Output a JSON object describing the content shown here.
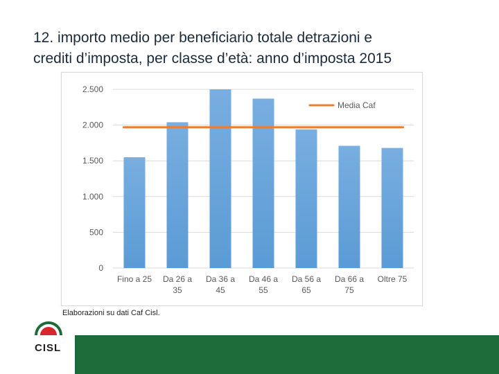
{
  "slide": {
    "title_line1": "12. importo medio per beneficiario totale detrazioni e",
    "title_line2": "crediti d’imposta, per classe d’età: anno d’imposta 2015",
    "source_note": "Elaborazioni su dati Caf Cisl.",
    "logo_text": "CISL"
  },
  "colors": {
    "bar": "#5b9bd5",
    "bar_light": "#78aee0",
    "avg_line": "#ed7d31",
    "footer": "#1e6b3a",
    "logo_red": "#d7262c",
    "logo_green": "#1e6b3a"
  },
  "chart_data": {
    "type": "bar",
    "title": "",
    "categories": [
      [
        "Fino a 25",
        ""
      ],
      [
        "Da 26 a",
        "35"
      ],
      [
        "Da 36 a",
        "45"
      ],
      [
        "Da 46 a",
        "55"
      ],
      [
        "Da 56 a",
        "65"
      ],
      [
        "Da 66 a",
        "75"
      ],
      [
        "Oltre 75",
        ""
      ]
    ],
    "values": [
      1550,
      2040,
      2500,
      2370,
      1940,
      1710,
      1680
    ],
    "average": {
      "name": "Media Caf",
      "value": 1970
    },
    "y_ticks": [
      {
        "value": 0,
        "label": "0"
      },
      {
        "value": 500,
        "label": "500"
      },
      {
        "value": 1000,
        "label": "1.000"
      },
      {
        "value": 1500,
        "label": "1.500"
      },
      {
        "value": 2000,
        "label": "2.000"
      },
      {
        "value": 2500,
        "label": "2.500"
      }
    ],
    "ylim": [
      0,
      2500
    ],
    "xlabel": "",
    "ylabel": "",
    "grid": true,
    "legend_position": "top-right"
  }
}
